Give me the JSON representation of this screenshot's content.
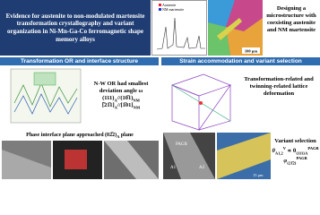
{
  "title": "Evidence for austenite to non-modulated martensite transformation crystallography and variant organization in Ni-Mn-Ga-Co ferromagnetic shape memory alloys",
  "design": {
    "text": "Designing a microstructure with coexisting austenite and NM martensite",
    "scale": "100 μm",
    "legend": [
      "Austenite",
      "NM martensite"
    ]
  },
  "left": {
    "header": "Transformation OR and interface structure",
    "or_note": "N-W OR had smallest deviation angle ω",
    "or_rel_1": [
      "(111)",
      "A",
      "//(10̅1)",
      "NM"
    ],
    "or_rel_2": [
      "[̅21̅1]",
      "A",
      "//[1̅01]",
      "NM"
    ],
    "interface": [
      "Phase interface plane approached (0",
      "2̅",
      "2)",
      "A",
      " plane"
    ]
  },
  "right": {
    "header": "Strain accommodation and variant selection",
    "deform": "Transformation-related and twinning-related lattice deformation",
    "variant": "Variant selection",
    "formula_1": [
      "θ",
      "A1,2",
      "V",
      " ∝ θ",
      "{111}A",
      "PAGB"
    ],
    "formula_2": [
      "φ",
      "{21̅2}",
      "PAGB"
    ],
    "img_labels": [
      "PAGB",
      "A1",
      "A2",
      "15 μm"
    ]
  }
}
